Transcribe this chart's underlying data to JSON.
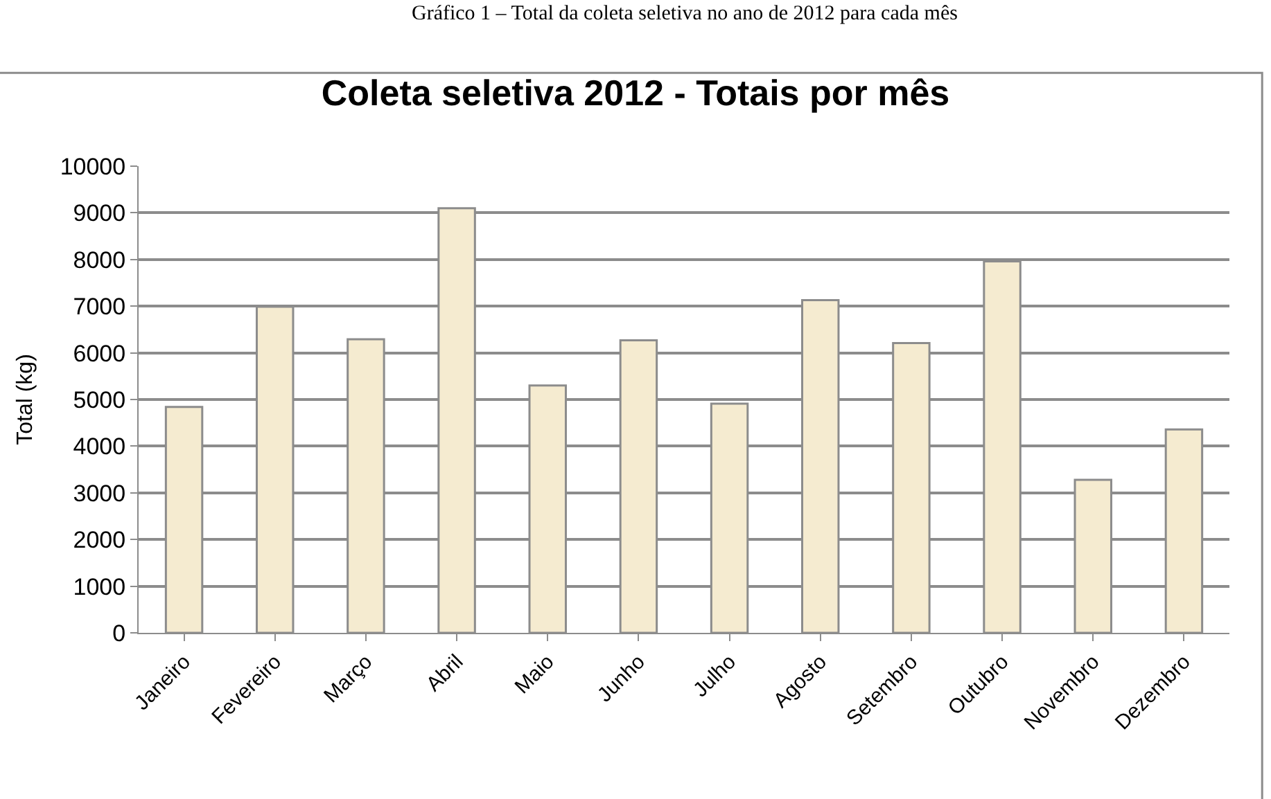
{
  "chart_data": {
    "type": "bar",
    "title": "Coleta seletiva 2012 - Totais por mês",
    "annotations": [
      "Gráfico 1 – Total da coleta seletiva no ano de 2012 para cada mês"
    ],
    "ylabel": "Total (kg)",
    "categories": [
      "Janeiro",
      "Fevereiro",
      "Março",
      "Abril",
      "Maio",
      "Junho",
      "Julho",
      "Agosto",
      "Setembro",
      "Outubro",
      "Novembro",
      "Dezembro"
    ],
    "values": [
      4840,
      6990,
      6290,
      9100,
      5300,
      6270,
      4910,
      7130,
      6210,
      7960,
      3280,
      4360
    ],
    "color": "#f5ebd0",
    "ylim": [
      0,
      10000
    ],
    "yticks": [
      0,
      1000,
      2000,
      3000,
      4000,
      5000,
      6000,
      7000,
      8000,
      9000,
      10000
    ],
    "grid": "y",
    "legend": false
  }
}
